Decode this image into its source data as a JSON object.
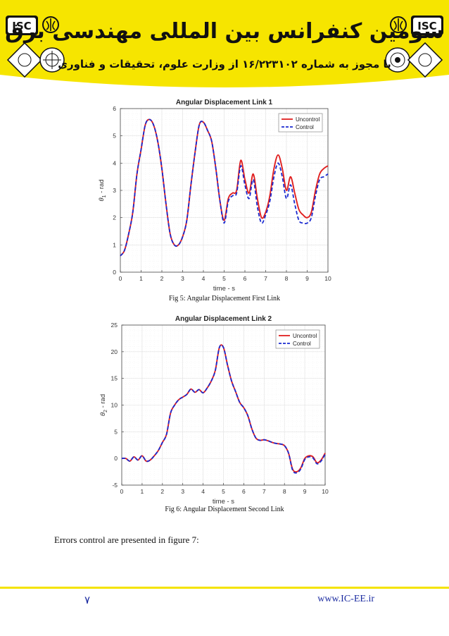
{
  "banner": {
    "title": "سومین کنفرانس بین المللی مهندسی برق",
    "subtitle": "با مجوز به شماره ۱۶/۲۲۳۱۰۲ از وزارت علوم، تحقیقات و فناوری",
    "left_logo": "ISC",
    "right_logo": "ISC",
    "colors": {
      "yellow": "#f6e500",
      "dark": "#111111"
    }
  },
  "figures": [
    {
      "caption": "Fig 5: Angular Displacement First Link",
      "chart_data": {
        "type": "line",
        "title": "Angular Displacement Link 1",
        "xlabel": "time - s",
        "ylabel_main": "θ",
        "ylabel_sub": "1",
        "ylabel_unit": " - rad",
        "xlim": [
          0,
          10
        ],
        "ylim": [
          0,
          6
        ],
        "xticks": [
          "0",
          "1",
          "2",
          "3",
          "4",
          "5",
          "6",
          "7",
          "8",
          "9",
          "10"
        ],
        "yticks": [
          "0",
          "1",
          "2",
          "3",
          "4",
          "5",
          "6"
        ],
        "grid": true,
        "legend": "top-right",
        "series": [
          {
            "name": "Uncontrol",
            "color": "#e02020",
            "style": "solid",
            "x": [
              0,
              0.2,
              0.4,
              0.6,
              0.8,
              1.0,
              1.2,
              1.4,
              1.6,
              1.8,
              2.0,
              2.2,
              2.4,
              2.6,
              2.8,
              3.0,
              3.2,
              3.4,
              3.6,
              3.8,
              4.0,
              4.2,
              4.4,
              4.6,
              4.8,
              5.0,
              5.2,
              5.4,
              5.6,
              5.8,
              6.0,
              6.2,
              6.4,
              6.6,
              6.8,
              7.0,
              7.2,
              7.4,
              7.6,
              7.8,
              8.0,
              8.2,
              8.4,
              8.6,
              8.8,
              9.0,
              9.2,
              9.4,
              9.6,
              9.8,
              10.0
            ],
            "y": [
              0.6,
              0.8,
              1.4,
              2.2,
              3.6,
              4.5,
              5.4,
              5.6,
              5.4,
              4.8,
              3.8,
              2.5,
              1.4,
              1.0,
              1.0,
              1.3,
              1.9,
              3.2,
              4.4,
              5.4,
              5.5,
              5.2,
              4.8,
              3.8,
              2.6,
              1.9,
              2.7,
              2.9,
              3.0,
              4.1,
              3.4,
              2.9,
              3.6,
              2.7,
              2.0,
              2.2,
              2.8,
              3.8,
              4.3,
              3.8,
              3.0,
              3.5,
              2.9,
              2.3,
              2.1,
              2.0,
              2.2,
              3.0,
              3.6,
              3.8,
              3.9
            ]
          },
          {
            "name": "Control",
            "color": "#1a2ad0",
            "style": "dashed",
            "x": [
              0,
              0.2,
              0.4,
              0.6,
              0.8,
              1.0,
              1.2,
              1.4,
              1.6,
              1.8,
              2.0,
              2.2,
              2.4,
              2.6,
              2.8,
              3.0,
              3.2,
              3.4,
              3.6,
              3.8,
              4.0,
              4.2,
              4.4,
              4.6,
              4.8,
              5.0,
              5.2,
              5.4,
              5.6,
              5.8,
              6.0,
              6.2,
              6.4,
              6.6,
              6.8,
              7.0,
              7.2,
              7.4,
              7.6,
              7.8,
              8.0,
              8.2,
              8.4,
              8.6,
              8.8,
              9.0,
              9.2,
              9.4,
              9.6,
              9.8,
              10.0
            ],
            "y": [
              0.6,
              0.8,
              1.4,
              2.2,
              3.6,
              4.5,
              5.4,
              5.6,
              5.4,
              4.8,
              3.8,
              2.5,
              1.4,
              1.0,
              1.0,
              1.3,
              1.9,
              3.2,
              4.4,
              5.4,
              5.5,
              5.2,
              4.8,
              3.8,
              2.6,
              1.8,
              2.6,
              2.8,
              2.9,
              3.9,
              3.2,
              2.7,
              3.4,
              2.4,
              1.8,
              2.1,
              2.6,
              3.5,
              4.0,
              3.5,
              2.7,
              3.2,
              2.5,
              1.9,
              1.8,
              1.8,
              2.0,
              2.8,
              3.4,
              3.5,
              3.6
            ]
          }
        ]
      }
    },
    {
      "caption": "Fig 6: Angular Displacement Second Link",
      "chart_data": {
        "type": "line",
        "title": "Angular Displacement Link 2",
        "xlabel": "time - s",
        "ylabel_main": "θ",
        "ylabel_sub": "2",
        "ylabel_unit": " - rad",
        "xlim": [
          0,
          10
        ],
        "ylim": [
          -5,
          25
        ],
        "xticks": [
          "0",
          "1",
          "2",
          "3",
          "4",
          "5",
          "6",
          "7",
          "8",
          "9",
          "10"
        ],
        "yticks": [
          "-5",
          "0",
          "5",
          "10",
          "15",
          "20",
          "25"
        ],
        "grid": true,
        "legend": "top-right",
        "series": [
          {
            "name": "Uncontrol",
            "color": "#e02020",
            "style": "solid",
            "x": [
              0,
              0.2,
              0.4,
              0.6,
              0.8,
              1.0,
              1.2,
              1.4,
              1.6,
              1.8,
              2.0,
              2.2,
              2.4,
              2.6,
              2.8,
              3.0,
              3.2,
              3.4,
              3.6,
              3.8,
              4.0,
              4.2,
              4.4,
              4.6,
              4.8,
              5.0,
              5.2,
              5.4,
              5.6,
              5.8,
              6.0,
              6.2,
              6.4,
              6.6,
              6.8,
              7.0,
              7.2,
              7.4,
              7.6,
              7.8,
              8.0,
              8.2,
              8.4,
              8.6,
              8.8,
              9.0,
              9.2,
              9.4,
              9.6,
              9.8,
              10.0
            ],
            "y": [
              0,
              0,
              -0.5,
              0.3,
              -0.3,
              0.5,
              -0.5,
              -0.3,
              0.5,
              1.5,
              3.0,
              4.5,
              8.5,
              10,
              11,
              11.5,
              12,
              13,
              12.4,
              12.9,
              12.3,
              13.2,
              14.5,
              16.5,
              20.8,
              20.8,
              17.5,
              14.5,
              12.5,
              10.5,
              9.5,
              8.0,
              5.5,
              3.8,
              3.4,
              3.5,
              3.3,
              3.0,
              2.8,
              2.7,
              2.4,
              1.0,
              -2.0,
              -2.5,
              -1.8,
              0.0,
              0.5,
              0.3,
              -0.8,
              -0.3,
              1.0
            ]
          },
          {
            "name": "Control",
            "color": "#1a2ad0",
            "style": "dashed",
            "x": [
              0,
              0.2,
              0.4,
              0.6,
              0.8,
              1.0,
              1.2,
              1.4,
              1.6,
              1.8,
              2.0,
              2.2,
              2.4,
              2.6,
              2.8,
              3.0,
              3.2,
              3.4,
              3.6,
              3.8,
              4.0,
              4.2,
              4.4,
              4.6,
              4.8,
              5.0,
              5.2,
              5.4,
              5.6,
              5.8,
              6.0,
              6.2,
              6.4,
              6.6,
              6.8,
              7.0,
              7.2,
              7.4,
              7.6,
              7.8,
              8.0,
              8.2,
              8.4,
              8.6,
              8.8,
              9.0,
              9.2,
              9.4,
              9.6,
              9.8,
              10.0
            ],
            "y": [
              0,
              0,
              -0.5,
              0.3,
              -0.3,
              0.5,
              -0.5,
              -0.3,
              0.5,
              1.5,
              3.0,
              4.5,
              8.5,
              10,
              11,
              11.5,
              12,
              13,
              12.4,
              12.9,
              12.3,
              13.2,
              14.5,
              16.5,
              20.8,
              20.8,
              17.5,
              14.5,
              12.5,
              10.5,
              9.5,
              8.0,
              5.5,
              3.8,
              3.4,
              3.5,
              3.3,
              3.0,
              2.8,
              2.7,
              2.4,
              1.0,
              -2.2,
              -2.7,
              -2.0,
              -0.2,
              0.3,
              0.1,
              -1.0,
              -0.5,
              0.8
            ]
          }
        ]
      }
    }
  ],
  "body_text": "Errors control are presented in figure 7:",
  "footer": {
    "page_number": "۷",
    "url": "www.IC-EE.ir"
  }
}
